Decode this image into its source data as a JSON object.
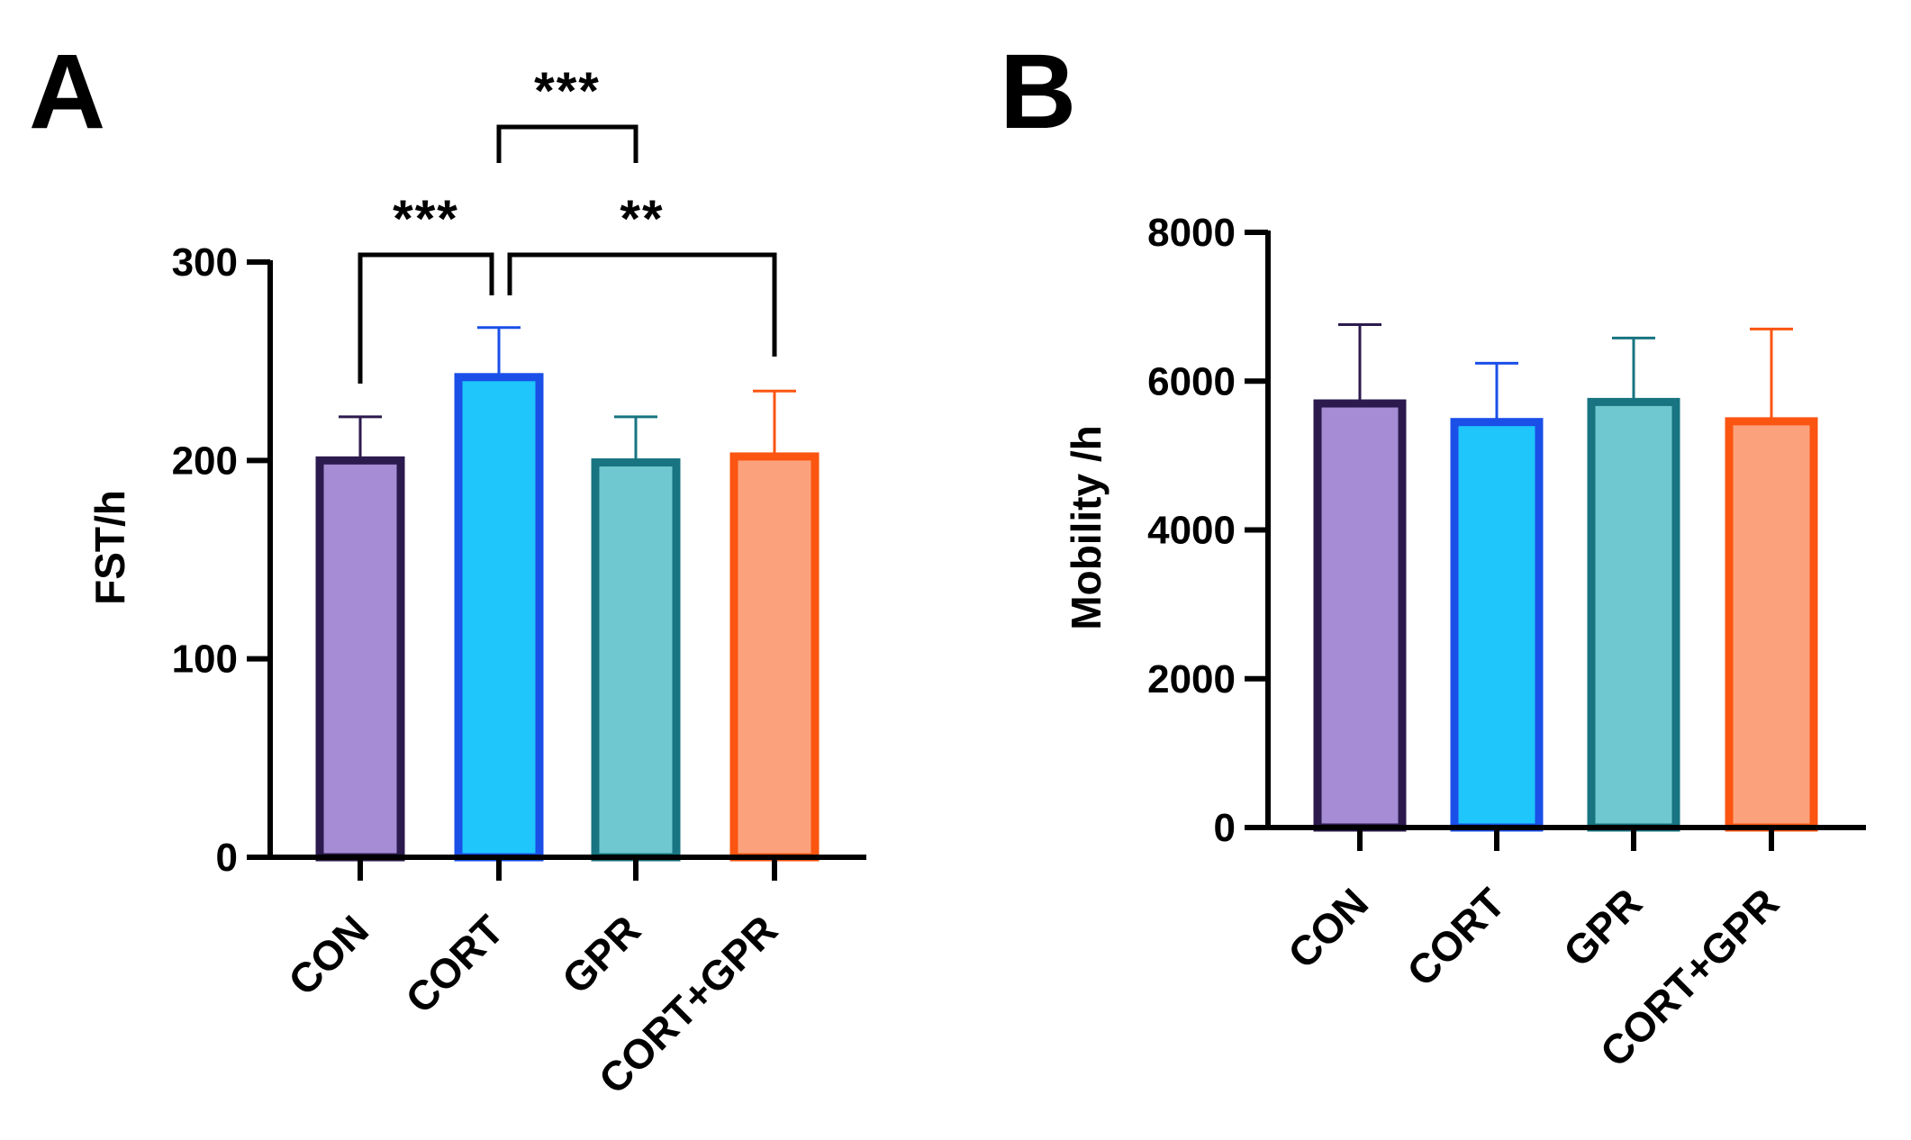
{
  "chart_data": [
    {
      "type": "bar",
      "panel": "A",
      "ylabel": "FST/h",
      "ylim": [
        0,
        300
      ],
      "yticks": [
        0,
        100,
        200,
        300
      ],
      "categories": [
        "CON",
        "CORT",
        "GPR",
        "CORT+GPR"
      ],
      "values": [
        200,
        242,
        199,
        202
      ],
      "error": [
        22,
        25,
        23,
        33
      ],
      "significance": [
        {
          "from": 0,
          "to": 1,
          "label": "***"
        },
        {
          "from": 1,
          "to": 3,
          "label": "**"
        },
        {
          "from": 1,
          "to": 2,
          "label": "***"
        }
      ]
    },
    {
      "type": "bar",
      "panel": "B",
      "ylabel": "Mobility /h",
      "ylim": [
        0,
        8000
      ],
      "yticks": [
        0,
        2000,
        4000,
        6000,
        8000
      ],
      "categories": [
        "CON",
        "CORT",
        "GPR",
        "CORT+GPR"
      ],
      "values": [
        5700,
        5450,
        5720,
        5460
      ],
      "error": [
        1060,
        790,
        860,
        1240
      ],
      "significance": []
    }
  ],
  "colors": {
    "fill": [
      "#a58cd4",
      "#1ec6fb",
      "#6fc8d0",
      "#fba27c"
    ],
    "edge": [
      "#2c1a4e",
      "#1a4fe8",
      "#177480",
      "#fb5511"
    ]
  }
}
